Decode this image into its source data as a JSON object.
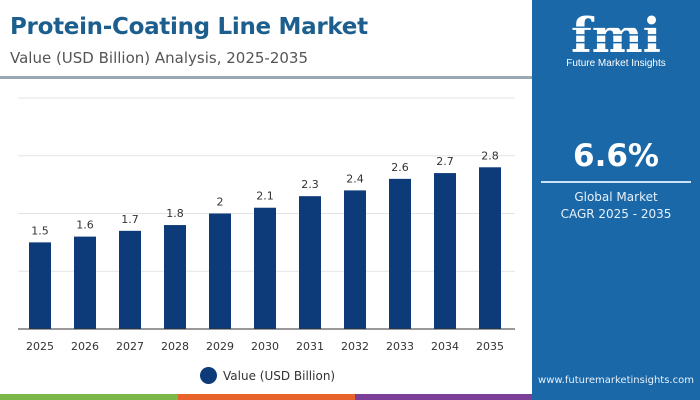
{
  "header": {
    "title": "Protein-Coating Line Market",
    "subtitle": "Value (USD Billion) Analysis, 2025-2035"
  },
  "sidebar": {
    "logo_text": "fmi",
    "brand": "Future Market Insights",
    "cagr_value": "6.6%",
    "cagr_label_1": "Global Market",
    "cagr_label_2": "CAGR 2025 - 2035",
    "url": "www.futuremarketinsights.com",
    "background": "#1a68a8"
  },
  "chart_data": {
    "type": "bar",
    "categories": [
      "2025",
      "2026",
      "2027",
      "2028",
      "2029",
      "2030",
      "2031",
      "2032",
      "2033",
      "2034",
      "2035"
    ],
    "series": [
      {
        "name": "Value (USD Billion)",
        "values": [
          1.5,
          1.6,
          1.7,
          1.8,
          2,
          2.1,
          2.3,
          2.4,
          2.6,
          2.7,
          2.8
        ],
        "color": "#0d3b7a"
      }
    ],
    "title": "Protein-Coating Line Market",
    "subtitle": "Value (USD Billion) Analysis, 2025-2035",
    "xlabel": "",
    "ylabel": "",
    "ylim": [
      0,
      4
    ],
    "grid": true,
    "y_tick_labels_shown": false,
    "legend": "bottom"
  },
  "legend": {
    "label": "Value (USD Billion)"
  },
  "stripes": [
    "#7ab648",
    "#e8622c",
    "#7b3f98"
  ]
}
